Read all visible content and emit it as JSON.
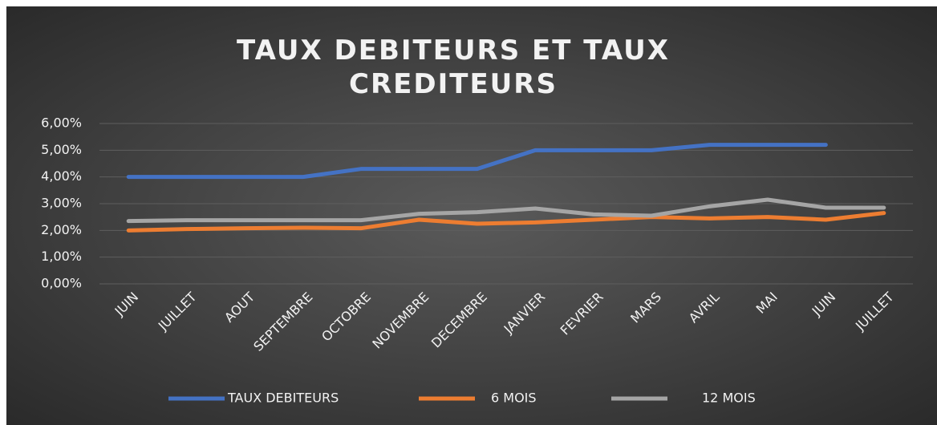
{
  "chart_data": {
    "type": "line",
    "title": "TAUX DEBITEURS ET TAUX CREDITEURS",
    "categories": [
      "JUIN",
      "JUILLET",
      "AOUT",
      "SEPTEMBRE",
      "OCTOBRE",
      "NOVEMBRE",
      "DECEMBRE",
      "JANVIER",
      "FEVRIER",
      "MARS",
      "AVRIL",
      "MAI",
      "JUIN",
      "JUILLET"
    ],
    "series": [
      {
        "name": "TAUX DEBITEURS",
        "color": "#4472c4",
        "values": [
          4.0,
          4.0,
          4.0,
          4.0,
          4.3,
          4.3,
          4.3,
          5.0,
          5.0,
          5.0,
          5.2,
          5.2,
          5.2,
          null
        ]
      },
      {
        "name": "6 MOIS",
        "color": "#ed7d31",
        "values": [
          2.0,
          2.05,
          2.08,
          2.1,
          2.08,
          2.4,
          2.25,
          2.3,
          2.4,
          2.5,
          2.45,
          2.5,
          2.4,
          2.65
        ]
      },
      {
        "name": "12 MOIS",
        "color": "#a5a5a5",
        "values": [
          2.35,
          2.38,
          2.38,
          2.38,
          2.38,
          2.62,
          2.68,
          2.82,
          2.6,
          2.55,
          2.9,
          3.15,
          2.85,
          2.85
        ]
      }
    ],
    "ylim": [
      0,
      6
    ],
    "yticks": [
      {
        "value": 0,
        "label": "0,00%"
      },
      {
        "value": 1,
        "label": "1,00%"
      },
      {
        "value": 2,
        "label": "2,00%"
      },
      {
        "value": 3,
        "label": "3,00%"
      },
      {
        "value": 4,
        "label": "4,00%"
      },
      {
        "value": 5,
        "label": "5,00%"
      },
      {
        "value": 6,
        "label": "6,00%"
      }
    ],
    "grid": true,
    "legend": "bottom"
  }
}
